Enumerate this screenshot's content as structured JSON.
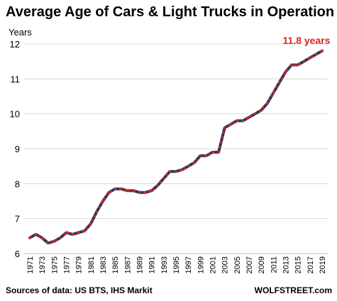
{
  "chart_data": {
    "type": "line",
    "title": "Average Age of Cars & Light Trucks in Operation",
    "ylabel": "Years",
    "ylim": [
      6,
      12
    ],
    "yticks": [
      6,
      7,
      8,
      9,
      10,
      11,
      12
    ],
    "xlim": [
      1971,
      2019
    ],
    "xticks": [
      1971,
      1973,
      1975,
      1977,
      1979,
      1981,
      1983,
      1985,
      1987,
      1989,
      1991,
      1993,
      1995,
      1997,
      1999,
      2001,
      2003,
      2005,
      2007,
      2009,
      2011,
      2013,
      2015,
      2017,
      2019
    ],
    "grid": "horizontal",
    "series": [
      {
        "color": "#1f3864",
        "overlay_color": "#e0241b",
        "x": [
          1971,
          1972,
          1973,
          1974,
          1975,
          1976,
          1977,
          1978,
          1979,
          1980,
          1981,
          1982,
          1983,
          1984,
          1985,
          1986,
          1987,
          1988,
          1989,
          1990,
          1991,
          1992,
          1993,
          1994,
          1995,
          1996,
          1997,
          1998,
          1999,
          2000,
          2001,
          2002,
          2003,
          2004,
          2005,
          2006,
          2007,
          2008,
          2009,
          2010,
          2011,
          2012,
          2013,
          2014,
          2015,
          2016,
          2017,
          2018,
          2019
        ],
        "values": [
          6.45,
          6.55,
          6.45,
          6.3,
          6.35,
          6.45,
          6.6,
          6.55,
          6.6,
          6.65,
          6.85,
          7.2,
          7.5,
          7.75,
          7.85,
          7.85,
          7.8,
          7.8,
          7.75,
          7.75,
          7.8,
          7.95,
          8.15,
          8.35,
          8.35,
          8.4,
          8.5,
          8.6,
          8.8,
          8.8,
          8.9,
          8.9,
          9.6,
          9.7,
          9.8,
          9.8,
          9.9,
          10.0,
          10.1,
          10.3,
          10.6,
          10.9,
          11.2,
          11.4,
          11.4,
          11.5,
          11.6,
          11.7,
          11.8
        ]
      }
    ],
    "end_label": "11.8 years",
    "source": "Sources of data: US BTS, IHS Markit",
    "brand": "WOLFSTREET.com"
  }
}
